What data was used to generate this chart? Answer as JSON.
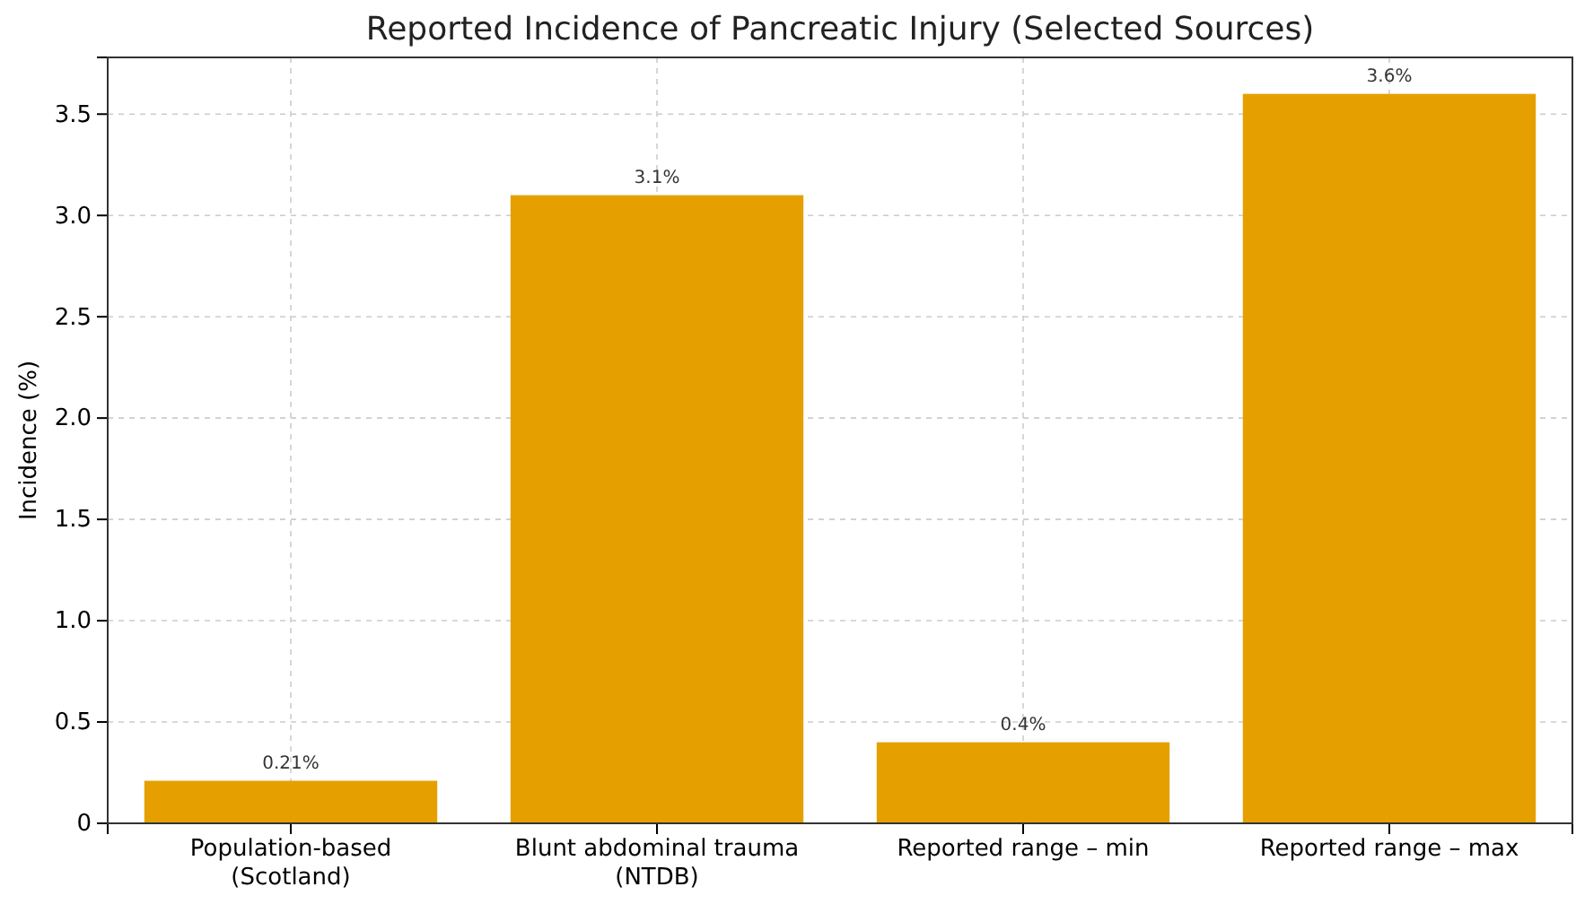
{
  "chart_data": {
    "type": "bar",
    "title": "Reported Incidence of Pancreatic Injury (Selected Sources)",
    "ylabel": "Incidence (%)",
    "categories": [
      "Population-based (Scotland)",
      "Blunt abdominal trauma (NTDB)",
      "Reported range – min",
      "Reported range – max"
    ],
    "values": [
      0.21,
      3.1,
      0.4,
      3.6
    ],
    "value_labels": [
      "0.21%",
      "3.1%",
      "0.4%",
      "3.6%"
    ],
    "color": "#e5a000",
    "ylim": [
      0,
      3.78
    ],
    "yticks": [
      0,
      {
        "value": 0.5,
        "label": "0.5"
      },
      {
        "value": 1,
        "label": "1.0"
      },
      {
        "value": 1.5,
        "label": "1.5"
      },
      {
        "value": 2,
        "label": "2.0"
      },
      {
        "value": 2.5,
        "label": "2.5"
      },
      {
        "value": 3,
        "label": "3.0"
      },
      {
        "value": 3.5,
        "label": "3.5"
      }
    ],
    "grid": true
  }
}
